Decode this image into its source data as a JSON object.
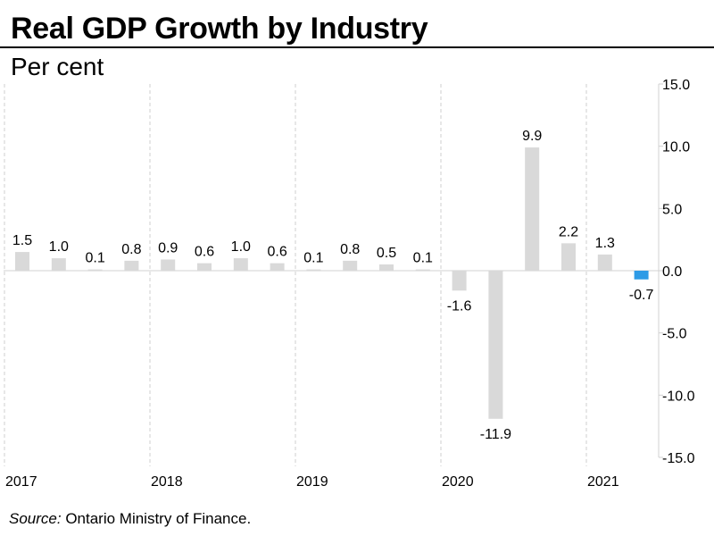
{
  "title": "Real GDP Growth by Industry",
  "subtitle": "Per cent",
  "source": {
    "label": "Source:",
    "text": " Ontario Ministry of Finance."
  },
  "colors": {
    "bar": "#d9d9d9",
    "highlight": "#2e9be6",
    "grid": "#cfcfcf",
    "axis": "#d0d0d0"
  },
  "chart_data": {
    "type": "bar",
    "title": "Real GDP Growth by Industry",
    "ylabel": "Per cent",
    "xlabel": "",
    "ylim": [
      -15,
      15
    ],
    "yticks": [
      15,
      10,
      5,
      0,
      -5,
      -10,
      -15
    ],
    "ytick_labels": [
      "15.0",
      "10.0",
      "5.0",
      "0.0",
      "-5.0",
      "-10.0",
      "-15.0"
    ],
    "year_labels": [
      "2017",
      "2018",
      "2019",
      "2020",
      "2021"
    ],
    "categories": [
      "2017 Q1",
      "2017 Q2",
      "2017 Q3",
      "2017 Q4",
      "2018 Q1",
      "2018 Q2",
      "2018 Q3",
      "2018 Q4",
      "2019 Q1",
      "2019 Q2",
      "2019 Q3",
      "2019 Q4",
      "2020 Q1",
      "2020 Q2",
      "2020 Q3",
      "2020 Q4",
      "2021 Q1",
      "2021 Q2"
    ],
    "values": [
      1.5,
      1.0,
      0.1,
      0.8,
      0.9,
      0.6,
      1.0,
      0.6,
      0.1,
      0.8,
      0.5,
      0.1,
      -1.6,
      -11.9,
      9.9,
      2.2,
      1.3,
      -0.7
    ],
    "labels": [
      "1.5",
      "1.0",
      "0.1",
      "0.8",
      "0.9",
      "0.6",
      "1.0",
      "0.6",
      "0.1",
      "0.8",
      "0.5",
      "0.1",
      "-1.6",
      "-11.9",
      "9.9",
      "2.2",
      "1.3",
      "-0.7"
    ],
    "highlight_index": 17,
    "grid": "vertical-dashed-year-separators",
    "y_axis_position": "right"
  }
}
